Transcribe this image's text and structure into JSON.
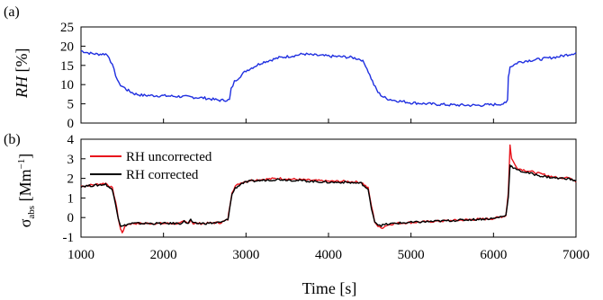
{
  "chart_data": [
    {
      "type": "line",
      "panel_label": "(a)",
      "xlabel": "",
      "ylabel": "RH [%]",
      "xlim": [
        1000,
        7000
      ],
      "ylim": [
        0,
        25
      ],
      "xticks": [
        1000,
        2000,
        3000,
        4000,
        5000,
        6000,
        7000
      ],
      "yticks": [
        0,
        5,
        10,
        15,
        20,
        25
      ],
      "ytick_labels": [
        "0",
        "5",
        "10",
        "15",
        "20",
        "25"
      ],
      "grid": false,
      "series": [
        {
          "color": "#1f2fe0",
          "x": [
            1000,
            1100,
            1200,
            1300,
            1340,
            1380,
            1420,
            1460,
            1500,
            1560,
            1650,
            1750,
            2000,
            2300,
            2500,
            2650,
            2700,
            2750,
            2800,
            2820,
            2860,
            2900,
            3000,
            3200,
            3400,
            3600,
            3700,
            3800,
            4000,
            4200,
            4300,
            4400,
            4450,
            4500,
            4550,
            4600,
            4650,
            4700,
            4800,
            5000,
            5200,
            5500,
            5800,
            6000,
            6100,
            6150,
            6170,
            6180,
            6200,
            6300,
            6400,
            6600,
            6800,
            7000
          ],
          "y": [
            18.8,
            18.2,
            17.9,
            18.0,
            17.2,
            15.0,
            12.5,
            10.2,
            9.6,
            8.6,
            7.6,
            7.2,
            7.1,
            6.8,
            6.5,
            6.0,
            5.9,
            6.0,
            6.0,
            8.8,
            10.8,
            11.6,
            13.6,
            15.8,
            17.0,
            17.6,
            18.0,
            17.7,
            17.4,
            17.2,
            17.0,
            16.5,
            15.0,
            12.5,
            10.0,
            8.0,
            7.0,
            6.4,
            5.9,
            5.3,
            5.0,
            4.7,
            4.6,
            4.8,
            5.0,
            5.1,
            6.0,
            12.0,
            14.6,
            15.8,
            16.2,
            16.7,
            17.3,
            18.3
          ]
        }
      ]
    },
    {
      "type": "line",
      "panel_label": "(b)",
      "xlabel": "Time [s]",
      "ylabel": "σabs [Mm−1]",
      "xlim": [
        1000,
        7000
      ],
      "ylim": [
        -1,
        4
      ],
      "xticks": [
        1000,
        2000,
        3000,
        4000,
        5000,
        6000,
        7000
      ],
      "xtick_labels": [
        "1000",
        "2000",
        "3000",
        "4000",
        "5000",
        "6000",
        "7000"
      ],
      "yticks": [
        -1,
        0,
        1,
        2,
        3,
        4
      ],
      "ytick_labels": [
        "-1",
        "0",
        "1",
        "2",
        "3",
        "4"
      ],
      "grid": false,
      "legend_position": "top-left",
      "series": [
        {
          "name": "RH uncorrected",
          "color": "#e8141c",
          "x": [
            1000,
            1200,
            1300,
            1380,
            1420,
            1450,
            1480,
            1500,
            1530,
            1560,
            1620,
            1800,
            2000,
            2200,
            2250,
            2300,
            2330,
            2360,
            2500,
            2700,
            2780,
            2800,
            2830,
            2870,
            2950,
            3050,
            3200,
            3400,
            3600,
            3800,
            4000,
            4200,
            4400,
            4480,
            4520,
            4560,
            4600,
            4640,
            4700,
            4800,
            5000,
            5500,
            6000,
            6150,
            6180,
            6200,
            6220,
            6260,
            6300,
            6400,
            6500,
            6600,
            6700,
            6800,
            6900,
            7000
          ],
          "y": [
            1.6,
            1.7,
            1.75,
            1.5,
            0.8,
            0.0,
            -0.6,
            -0.75,
            -0.5,
            -0.35,
            -0.3,
            -0.3,
            -0.3,
            -0.3,
            -0.2,
            -0.3,
            -0.1,
            -0.3,
            -0.3,
            -0.25,
            -0.1,
            0.5,
            1.3,
            1.6,
            1.8,
            1.9,
            1.95,
            2.0,
            1.95,
            1.9,
            1.85,
            1.85,
            1.8,
            1.5,
            0.6,
            -0.2,
            -0.45,
            -0.55,
            -0.4,
            -0.3,
            -0.25,
            -0.15,
            -0.05,
            0.1,
            1.3,
            3.7,
            3.0,
            2.7,
            2.5,
            2.4,
            2.3,
            2.2,
            2.1,
            2.0,
            2.1,
            1.8
          ]
        },
        {
          "name": "RH corrected",
          "color": "#000000",
          "x": [
            1000,
            1200,
            1300,
            1380,
            1420,
            1450,
            1480,
            1500,
            1530,
            1560,
            1620,
            1800,
            2000,
            2200,
            2250,
            2300,
            2330,
            2360,
            2500,
            2700,
            2780,
            2800,
            2830,
            2870,
            2950,
            3050,
            3200,
            3400,
            3600,
            3800,
            4000,
            4200,
            4400,
            4480,
            4520,
            4560,
            4600,
            4640,
            4700,
            4800,
            5000,
            5500,
            6000,
            6150,
            6180,
            6200,
            6220,
            6260,
            6300,
            6400,
            6500,
            6600,
            6700,
            6800,
            6900,
            7000
          ],
          "y": [
            1.6,
            1.65,
            1.7,
            1.4,
            0.7,
            0.0,
            -0.4,
            -0.45,
            -0.4,
            -0.35,
            -0.3,
            -0.3,
            -0.3,
            -0.3,
            -0.2,
            -0.3,
            -0.1,
            -0.3,
            -0.3,
            -0.25,
            -0.1,
            0.4,
            1.2,
            1.5,
            1.75,
            1.85,
            1.9,
            1.95,
            1.9,
            1.85,
            1.8,
            1.8,
            1.75,
            1.4,
            0.5,
            -0.2,
            -0.35,
            -0.4,
            -0.35,
            -0.3,
            -0.25,
            -0.15,
            -0.05,
            0.1,
            1.1,
            2.7,
            2.6,
            2.5,
            2.4,
            2.3,
            2.2,
            2.1,
            2.05,
            2.0,
            2.0,
            1.85
          ]
        }
      ]
    }
  ]
}
